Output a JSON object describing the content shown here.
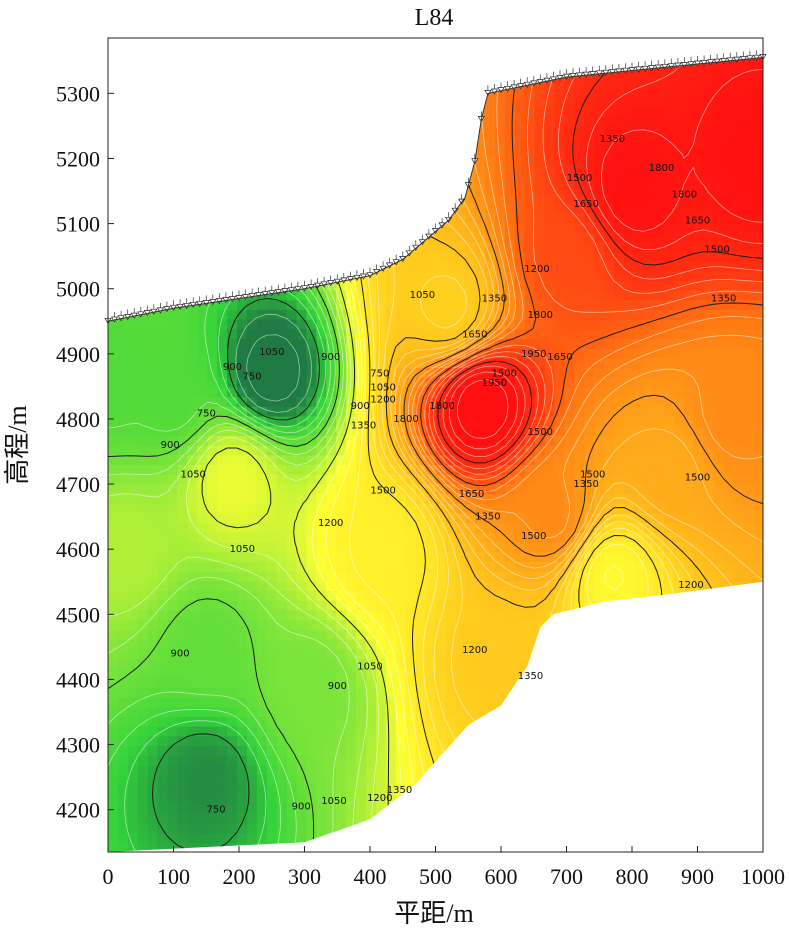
{
  "chart_data": {
    "type": "heatmap",
    "title": "L84",
    "xlabel": "平距/m",
    "ylabel": "高程/m",
    "xlim": [
      0,
      1000
    ],
    "ylim": [
      4135,
      5385
    ],
    "xticks": [
      0,
      100,
      200,
      300,
      400,
      500,
      600,
      700,
      800,
      900,
      1000
    ],
    "yticks": [
      4200,
      4300,
      4400,
      4500,
      4600,
      4700,
      4800,
      4900,
      5000,
      5100,
      5200,
      5300
    ],
    "color_scale": [
      {
        "value": 700,
        "color": "#1f7a44"
      },
      {
        "value": 800,
        "color": "#33d33a"
      },
      {
        "value": 950,
        "color": "#8be83a"
      },
      {
        "value": 1100,
        "color": "#ffff33"
      },
      {
        "value": 1300,
        "color": "#ffd21f"
      },
      {
        "value": 1450,
        "color": "#ffab1a"
      },
      {
        "value": 1600,
        "color": "#ff7a14"
      },
      {
        "value": 1750,
        "color": "#ff3512"
      },
      {
        "value": 1900,
        "color": "#ff1010"
      }
    ],
    "top_boundary": [
      [
        0,
        4950
      ],
      [
        100,
        4970
      ],
      [
        200,
        4985
      ],
      [
        300,
        5000
      ],
      [
        400,
        5020
      ],
      [
        450,
        5045
      ],
      [
        520,
        5105
      ],
      [
        545,
        5140
      ],
      [
        560,
        5195
      ],
      [
        570,
        5260
      ],
      [
        580,
        5300
      ],
      [
        700,
        5325
      ],
      [
        1000,
        5355
      ]
    ],
    "bottom_boundary": [
      [
        0,
        4135
      ],
      [
        300,
        4150
      ],
      [
        400,
        4185
      ],
      [
        470,
        4240
      ],
      [
        550,
        4330
      ],
      [
        600,
        4360
      ],
      [
        640,
        4420
      ],
      [
        660,
        4480
      ],
      [
        680,
        4500
      ],
      [
        760,
        4520
      ],
      [
        850,
        4530
      ],
      [
        1000,
        4550
      ]
    ],
    "anomalies": [
      {
        "x": 570,
        "y": 4820,
        "value": 1950
      },
      {
        "x": 800,
        "y": 5150,
        "value": 1900
      },
      {
        "x": 700,
        "y": 5050,
        "value": 1700
      },
      {
        "x": 990,
        "y": 5200,
        "value": 1900
      },
      {
        "x": 950,
        "y": 4800,
        "value": 1550
      },
      {
        "x": 680,
        "y": 4650,
        "value": 1550
      },
      {
        "x": 520,
        "y": 4970,
        "value": 1300
      },
      {
        "x": 250,
        "y": 4870,
        "value": 650
      },
      {
        "x": 100,
        "y": 4830,
        "value": 850
      },
      {
        "x": 0,
        "y": 4860,
        "value": 850
      },
      {
        "x": 150,
        "y": 4250,
        "value": 720
      },
      {
        "x": 150,
        "y": 4450,
        "value": 880
      },
      {
        "x": 310,
        "y": 4390,
        "value": 920
      },
      {
        "x": 30,
        "y": 4600,
        "value": 1000
      },
      {
        "x": 190,
        "y": 4710,
        "value": 1080
      },
      {
        "x": 770,
        "y": 4560,
        "value": 1120
      },
      {
        "x": 590,
        "y": 4430,
        "value": 1330
      },
      {
        "x": 860,
        "y": 4720,
        "value": 1450
      },
      {
        "x": 420,
        "y": 4600,
        "value": 1170
      }
    ],
    "contour_labels": [
      {
        "x": 250,
        "y": 4903,
        "text": "1050"
      },
      {
        "x": 190,
        "y": 4880,
        "text": "900"
      },
      {
        "x": 340,
        "y": 4895,
        "text": "900"
      },
      {
        "x": 220,
        "y": 4865,
        "text": "750"
      },
      {
        "x": 415,
        "y": 4870,
        "text": "750"
      },
      {
        "x": 480,
        "y": 4990,
        "text": "1050"
      },
      {
        "x": 385,
        "y": 4820,
        "text": "900"
      },
      {
        "x": 420,
        "y": 4848,
        "text": "1050"
      },
      {
        "x": 420,
        "y": 4830,
        "text": "1200"
      },
      {
        "x": 150,
        "y": 4808,
        "text": "750"
      },
      {
        "x": 95,
        "y": 4760,
        "text": "900"
      },
      {
        "x": 130,
        "y": 4715,
        "text": "1050"
      },
      {
        "x": 390,
        "y": 4790,
        "text": "1350"
      },
      {
        "x": 420,
        "y": 4690,
        "text": "1500"
      },
      {
        "x": 340,
        "y": 4640,
        "text": "1200"
      },
      {
        "x": 205,
        "y": 4600,
        "text": "1050"
      },
      {
        "x": 555,
        "y": 4685,
        "text": "1650"
      },
      {
        "x": 580,
        "y": 4650,
        "text": "1350"
      },
      {
        "x": 650,
        "y": 4620,
        "text": "1500"
      },
      {
        "x": 730,
        "y": 4700,
        "text": "1350"
      },
      {
        "x": 660,
        "y": 4780,
        "text": "1500"
      },
      {
        "x": 605,
        "y": 4870,
        "text": "1500"
      },
      {
        "x": 740,
        "y": 4715,
        "text": "1500"
      },
      {
        "x": 890,
        "y": 4545,
        "text": "1200"
      },
      {
        "x": 900,
        "y": 4710,
        "text": "1500"
      },
      {
        "x": 940,
        "y": 4985,
        "text": "1350"
      },
      {
        "x": 930,
        "y": 5060,
        "text": "1500"
      },
      {
        "x": 900,
        "y": 5105,
        "text": "1650"
      },
      {
        "x": 880,
        "y": 5145,
        "text": "1800"
      },
      {
        "x": 845,
        "y": 5185,
        "text": "1800"
      },
      {
        "x": 770,
        "y": 5230,
        "text": "1350"
      },
      {
        "x": 720,
        "y": 5170,
        "text": "1500"
      },
      {
        "x": 730,
        "y": 5130,
        "text": "1650"
      },
      {
        "x": 655,
        "y": 5030,
        "text": "1200"
      },
      {
        "x": 660,
        "y": 4960,
        "text": "1800"
      },
      {
        "x": 650,
        "y": 4900,
        "text": "1950"
      },
      {
        "x": 690,
        "y": 4895,
        "text": "1650"
      },
      {
        "x": 590,
        "y": 4985,
        "text": "1350"
      },
      {
        "x": 560,
        "y": 4930,
        "text": "1650"
      },
      {
        "x": 590,
        "y": 4855,
        "text": "1950"
      },
      {
        "x": 510,
        "y": 4820,
        "text": "1800"
      },
      {
        "x": 455,
        "y": 4800,
        "text": "1800"
      },
      {
        "x": 560,
        "y": 4445,
        "text": "1200"
      },
      {
        "x": 400,
        "y": 4420,
        "text": "1050"
      },
      {
        "x": 350,
        "y": 4390,
        "text": "900"
      },
      {
        "x": 110,
        "y": 4440,
        "text": "900"
      },
      {
        "x": 165,
        "y": 4200,
        "text": "750"
      },
      {
        "x": 295,
        "y": 4205,
        "text": "900"
      },
      {
        "x": 345,
        "y": 4213,
        "text": "1050"
      },
      {
        "x": 415,
        "y": 4218,
        "text": "1200"
      },
      {
        "x": 445,
        "y": 4230,
        "text": "1350"
      },
      {
        "x": 645,
        "y": 4405,
        "text": "1350"
      }
    ]
  }
}
